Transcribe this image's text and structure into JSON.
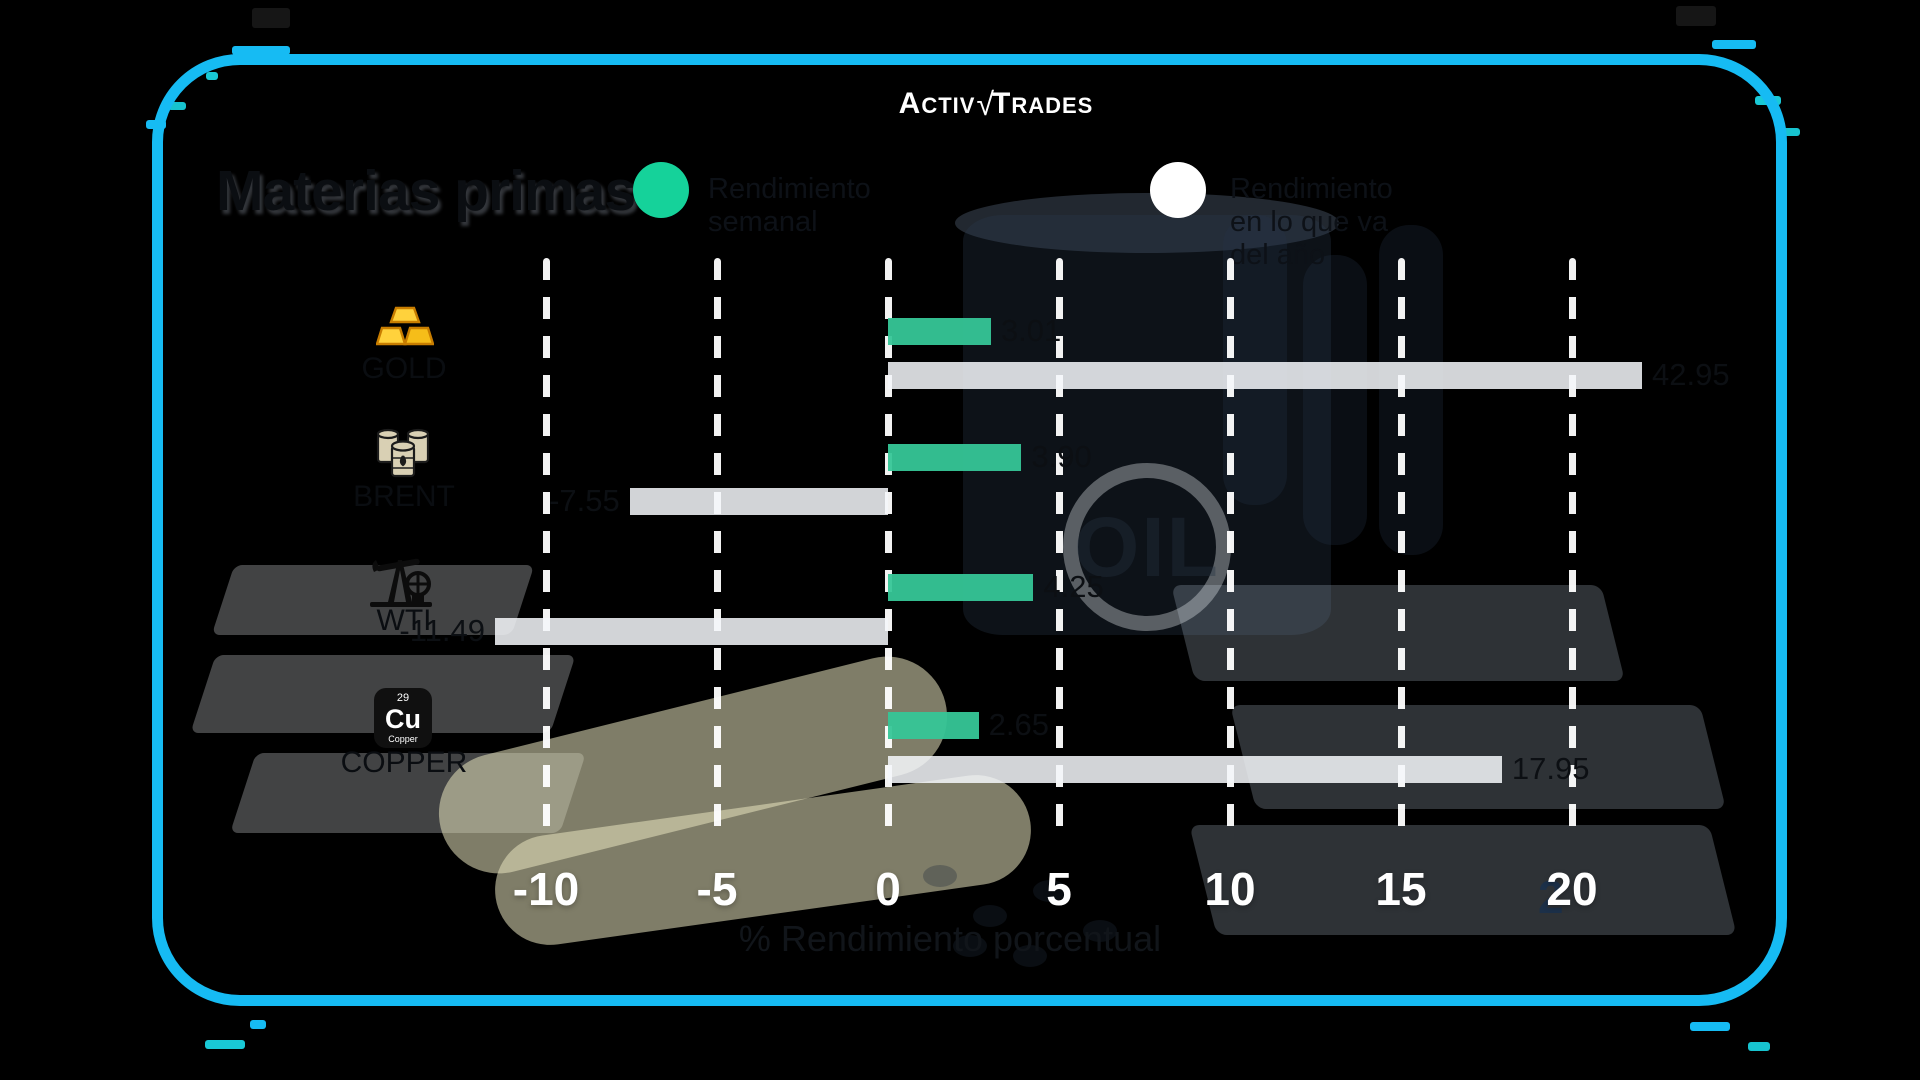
{
  "brand": {
    "logo_part1": "Activ",
    "logo_mark": "√",
    "logo_part2": "Trades"
  },
  "title": "Materias primas",
  "legend": {
    "items": [
      {
        "label": "Rendimiento semanal",
        "color": "#15d29a"
      },
      {
        "label": "Rendimiento en lo que va del año",
        "color": "#ffffff"
      }
    ]
  },
  "chart_data": {
    "type": "bar",
    "orientation": "horizontal",
    "categories": [
      "GOLD",
      "BRENT",
      "WTI",
      "COPPER"
    ],
    "series": [
      {
        "name": "Rendimiento semanal",
        "color": "#36c697",
        "values": [
          3.01,
          3.9,
          4.25,
          2.65
        ]
      },
      {
        "name": "Rendimiento en lo que va del año",
        "color": "#f2f5f8",
        "values": [
          42.95,
          -7.55,
          -11.49,
          17.95
        ]
      }
    ],
    "value_labels": [
      [
        "3.01",
        "42.95"
      ],
      [
        "3.90",
        "-7.55"
      ],
      [
        "4.25",
        "-11.49"
      ],
      [
        "2.65",
        "17.95"
      ]
    ],
    "xlabel": "% Rendimiento porcentual",
    "x_ticks": [
      "-10",
      "-5",
      "0",
      "5",
      "10",
      "15",
      "20"
    ],
    "x_tick_values": [
      -10,
      -5,
      0,
      5,
      10,
      15,
      20
    ],
    "xlim": [
      -12,
      22
    ],
    "grid": "dashed-vertical-white",
    "legend_position": "top",
    "tick_overlap_artifact": "2",
    "icons": [
      "gold-bars",
      "oil-barrels",
      "oil-pump",
      "copper-element"
    ]
  },
  "copper_icon": {
    "number": "29",
    "symbol": "Cu",
    "label": "Copper"
  },
  "background_watermark": "OIL",
  "colors": {
    "frame_border": "#16bbf3",
    "weekly_green": "#36c697",
    "ytd_white": "#f2f5f8",
    "outer_background": "#000000"
  }
}
